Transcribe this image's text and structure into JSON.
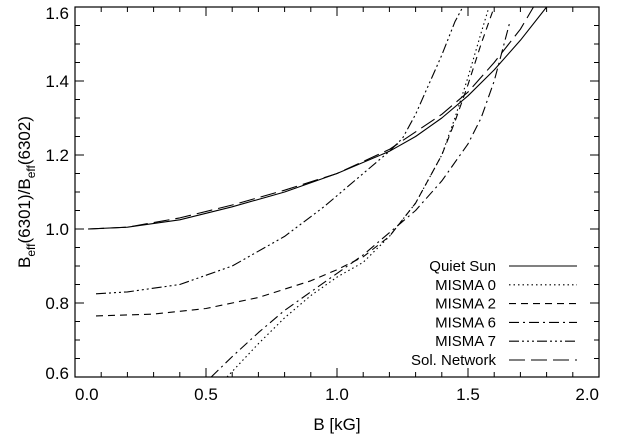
{
  "chart_data": {
    "type": "line",
    "xlabel": "B [kG]",
    "ylabel": {
      "prefix": "B",
      "sub1": "eff",
      "mid": "(6301)/B",
      "sub2": "eff",
      "suffix": "(6302)"
    },
    "xlim": [
      0.0,
      2.0
    ],
    "ylim": [
      0.6,
      1.6
    ],
    "xticks": [
      0.0,
      0.5,
      1.0,
      1.5,
      2.0
    ],
    "xtick_labels": [
      "0.0",
      "0.5",
      "1.0",
      "1.5",
      "2.0"
    ],
    "yticks": [
      0.6,
      0.8,
      1.0,
      1.2,
      1.4,
      1.6
    ],
    "ytick_labels": [
      "0.6",
      "0.8",
      "1.0",
      "1.2",
      "1.4",
      "1.6"
    ],
    "grid": false,
    "legend_position": "bottom-right",
    "series": [
      {
        "name": "Quiet Sun",
        "dash": "solid",
        "x": [
          0.05,
          0.2,
          0.4,
          0.6,
          0.8,
          1.0,
          1.2,
          1.3,
          1.4,
          1.5,
          1.6,
          1.7,
          1.8
        ],
        "y": [
          1.0,
          1.005,
          1.025,
          1.06,
          1.1,
          1.15,
          1.21,
          1.25,
          1.3,
          1.36,
          1.43,
          1.51,
          1.6
        ]
      },
      {
        "name": "MISMA 0",
        "dash": "dotted",
        "x": [
          0.58,
          0.7,
          0.8,
          0.9,
          1.0,
          1.1,
          1.2,
          1.3,
          1.4,
          1.45,
          1.5,
          1.55,
          1.58
        ],
        "y": [
          0.6,
          0.69,
          0.76,
          0.82,
          0.87,
          0.91,
          0.98,
          1.07,
          1.2,
          1.3,
          1.41,
          1.53,
          1.6
        ]
      },
      {
        "name": "MISMA 2",
        "dash": "dashed",
        "x": [
          0.08,
          0.3,
          0.5,
          0.7,
          0.9,
          1.0,
          1.1,
          1.2,
          1.3,
          1.4,
          1.45,
          1.5,
          1.55,
          1.6
        ],
        "y": [
          0.765,
          0.77,
          0.785,
          0.815,
          0.86,
          0.89,
          0.925,
          0.98,
          1.07,
          1.2,
          1.29,
          1.39,
          1.5,
          1.6
        ]
      },
      {
        "name": "MISMA 6",
        "dash": "dashdot",
        "x": [
          0.52,
          0.6,
          0.7,
          0.8,
          0.9,
          1.0,
          1.1,
          1.2,
          1.3,
          1.4,
          1.5,
          1.55,
          1.6,
          1.63,
          1.66
        ],
        "y": [
          0.6,
          0.655,
          0.72,
          0.78,
          0.83,
          0.88,
          0.93,
          0.99,
          1.05,
          1.13,
          1.23,
          1.3,
          1.4,
          1.48,
          1.56
        ]
      },
      {
        "name": "MISMA 7",
        "dash": "dashdotdotdot",
        "x": [
          0.08,
          0.2,
          0.4,
          0.6,
          0.8,
          0.95,
          1.1,
          1.2,
          1.25,
          1.3,
          1.35,
          1.4,
          1.45,
          1.48
        ],
        "y": [
          0.825,
          0.83,
          0.85,
          0.9,
          0.98,
          1.06,
          1.15,
          1.21,
          1.245,
          1.31,
          1.39,
          1.47,
          1.56,
          1.6
        ]
      },
      {
        "name": "Sol. Network",
        "dash": "longdash",
        "x": [
          0.05,
          0.2,
          0.4,
          0.6,
          0.8,
          1.0,
          1.2,
          1.4,
          1.5,
          1.6,
          1.7,
          1.75
        ],
        "y": [
          1.0,
          1.005,
          1.03,
          1.065,
          1.105,
          1.15,
          1.215,
          1.31,
          1.37,
          1.45,
          1.54,
          1.6
        ]
      }
    ]
  }
}
